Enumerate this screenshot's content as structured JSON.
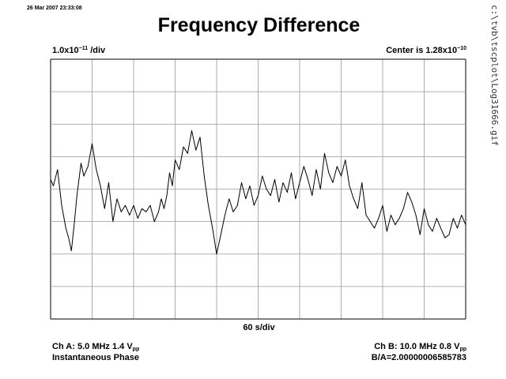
{
  "header": {
    "timestamp": "26 Mar 2007 23:33:08",
    "title": "Frequency Difference",
    "file_path": "c:\\tvb\\tscplot\\Log31666.gif"
  },
  "scale": {
    "vertical_prefix": "1.0x10",
    "vertical_exponent": "−11",
    "vertical_suffix": " /div",
    "center_prefix": "Center is 1.28x10",
    "center_exponent": "−10",
    "horizontal": "60 s/div"
  },
  "channels": {
    "a_prefix": "Ch A: 5.0 MHz 1.4 V",
    "a_sub": "pp",
    "a_mode": "Instantaneous Phase",
    "b_prefix": "Ch B: 10.0 MHz 0.8 V",
    "b_sub": "pp",
    "ratio": "B/A=2.00000006585783"
  },
  "chart_data": {
    "type": "line",
    "title": "Frequency Difference",
    "xlabel": "60 s/div",
    "ylabel": "1.0x10−11 /div",
    "grid": true,
    "x_divisions": 10,
    "y_divisions": 8,
    "xlim": [
      0,
      600
    ],
    "ylim_div": [
      -4,
      4
    ],
    "series": [
      {
        "color": "#000000",
        "x": [
          0,
          4,
          10,
          16,
          22,
          26,
          30,
          34,
          38,
          44,
          48,
          54,
          60,
          66,
          72,
          78,
          84,
          90,
          96,
          102,
          108,
          114,
          120,
          126,
          132,
          138,
          144,
          150,
          156,
          160,
          164,
          168,
          172,
          176,
          180,
          186,
          192,
          198,
          204,
          210,
          216,
          222,
          228,
          234,
          240,
          246,
          252,
          258,
          264,
          270,
          276,
          282,
          288,
          294,
          300,
          306,
          312,
          318,
          324,
          330,
          336,
          342,
          348,
          354,
          360,
          366,
          372,
          378,
          384,
          390,
          396,
          402,
          408,
          414,
          420,
          426,
          432,
          438,
          444,
          450,
          456,
          462,
          468,
          474,
          480,
          486,
          492,
          498,
          504,
          510,
          516,
          522,
          528,
          534,
          540,
          546,
          552,
          558,
          564,
          570,
          576,
          582,
          588,
          594,
          600
        ],
        "y": [
          0.3,
          0.1,
          0.6,
          -0.5,
          -1.2,
          -1.5,
          -1.9,
          -1.1,
          -0.2,
          0.8,
          0.4,
          0.7,
          1.4,
          0.6,
          0.1,
          -0.6,
          0.2,
          -1.0,
          -0.3,
          -0.7,
          -0.5,
          -0.8,
          -0.5,
          -0.9,
          -0.6,
          -0.7,
          -0.5,
          -1.0,
          -0.7,
          -0.3,
          -0.6,
          -0.2,
          0.5,
          0.1,
          0.9,
          0.6,
          1.3,
          1.1,
          1.8,
          1.2,
          1.6,
          0.4,
          -0.5,
          -1.2,
          -2.0,
          -1.4,
          -0.8,
          -0.3,
          -0.7,
          -0.5,
          0.2,
          -0.3,
          0.1,
          -0.5,
          -0.2,
          0.4,
          0.0,
          -0.2,
          0.3,
          -0.4,
          0.2,
          -0.1,
          0.5,
          -0.3,
          0.2,
          0.7,
          0.3,
          -0.2,
          0.6,
          0.0,
          1.1,
          0.5,
          0.2,
          0.7,
          0.4,
          0.9,
          0.1,
          -0.3,
          -0.6,
          0.2,
          -0.8,
          -1.0,
          -1.2,
          -0.9,
          -0.5,
          -1.3,
          -0.8,
          -1.1,
          -0.9,
          -0.6,
          -0.1,
          -0.4,
          -0.8,
          -1.4,
          -0.6,
          -1.1,
          -1.3,
          -0.9,
          -1.2,
          -1.5,
          -1.4,
          -0.9,
          -1.2,
          -0.8,
          -1.1
        ]
      }
    ]
  }
}
